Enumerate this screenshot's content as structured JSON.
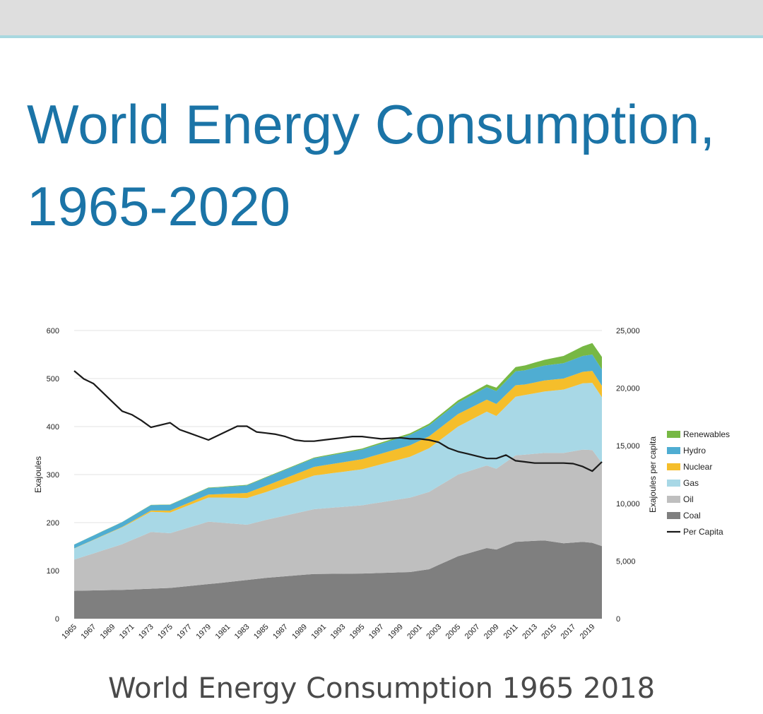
{
  "page": {
    "title": "World Energy Consumption, 1965-2020",
    "caption": "World Energy Consumption 1965 2018"
  },
  "chart_data": {
    "type": "area",
    "title": "",
    "ylabel": "Exajoules",
    "y2label": "Exajoules per capita",
    "ylim": [
      0,
      600
    ],
    "y2lim": [
      0,
      25000
    ],
    "yticks": [
      0,
      100,
      200,
      300,
      400,
      500,
      600
    ],
    "y2ticks": [
      "0",
      "5,000",
      "10,000",
      "15,000",
      "20,000",
      "25,000"
    ],
    "y2tickvalues": [
      0,
      5000,
      10000,
      15000,
      20000,
      25000
    ],
    "xlim": [
      1965,
      2020
    ],
    "xticks": [
      "1965",
      "1967",
      "1969",
      "1971",
      "1973",
      "1975",
      "1977",
      "1979",
      "1981",
      "1983",
      "1985",
      "1987",
      "1989",
      "1991",
      "1993",
      "1995",
      "1997",
      "1999",
      "2001",
      "2003",
      "2005",
      "2007",
      "2009",
      "2011",
      "2013",
      "2015",
      "2017",
      "2019"
    ],
    "legend_position": "right",
    "series": [
      {
        "name": "Coal",
        "color": "#7f7f7f",
        "x": [
          1965,
          1970,
          1975,
          1980,
          1985,
          1990,
          1995,
          2000,
          2002,
          2005,
          2008,
          2009,
          2011,
          2014,
          2016,
          2018,
          2019,
          2020
        ],
        "values": [
          58,
          60,
          64,
          74,
          85,
          93,
          94,
          97,
          103,
          130,
          147,
          144,
          160,
          163,
          157,
          160,
          158,
          151
        ]
      },
      {
        "name": "Oil",
        "color": "#bfbfbf",
        "x": [
          1965,
          1970,
          1973,
          1975,
          1979,
          1983,
          1990,
          1995,
          2000,
          2005,
          2008,
          2009,
          2011,
          2014,
          2016,
          2018,
          2019,
          2020
        ],
        "values": [
          65,
          95,
          118,
          114,
          130,
          115,
          135,
          142,
          155,
          170,
          172,
          168,
          180,
          182,
          188,
          192,
          193,
          173
        ]
      },
      {
        "name": "Gas",
        "color": "#a8d8e6",
        "x": [
          1965,
          1970,
          1973,
          1975,
          1980,
          1985,
          1990,
          1995,
          2000,
          2005,
          2008,
          2009,
          2011,
          2014,
          2016,
          2018,
          2019,
          2020
        ],
        "values": [
          23,
          35,
          42,
          43,
          52,
          58,
          70,
          75,
          85,
          100,
          112,
          110,
          122,
          128,
          132,
          138,
          140,
          137
        ]
      },
      {
        "name": "Nuclear",
        "color": "#f5be2b",
        "x": [
          1965,
          1970,
          1975,
          1980,
          1985,
          1990,
          1995,
          2000,
          2005,
          2008,
          2009,
          2011,
          2012,
          2014,
          2016,
          2018,
          2019,
          2020
        ],
        "values": [
          0.3,
          1,
          4,
          7,
          13,
          18,
          21,
          24,
          26,
          25,
          25,
          24,
          22,
          23,
          23,
          24,
          25,
          24
        ]
      },
      {
        "name": "Hydro",
        "color": "#4fadd2",
        "x": [
          1965,
          1970,
          1975,
          1980,
          1985,
          1990,
          1995,
          2000,
          2005,
          2008,
          2011,
          2014,
          2016,
          2018,
          2019,
          2020
        ],
        "values": [
          8,
          10,
          12,
          14,
          17,
          18,
          20,
          22,
          24,
          26,
          29,
          31,
          32,
          33,
          34,
          34
        ]
      },
      {
        "name": "Renewables",
        "color": "#77b844",
        "x": [
          1965,
          1990,
          2000,
          2005,
          2008,
          2009,
          2011,
          2014,
          2016,
          2018,
          2019,
          2020
        ],
        "values": [
          0.1,
          1.5,
          3,
          4.5,
          6,
          7,
          9,
          12,
          15,
          20,
          24,
          26
        ]
      },
      {
        "name": "Per Capita",
        "color": "#1a1a1a",
        "axis": "secondary",
        "x": [
          1965,
          1966,
          1967,
          1968,
          1969,
          1970,
          1971,
          1972,
          1973,
          1974,
          1975,
          1976,
          1977,
          1978,
          1979,
          1980,
          1981,
          1982,
          1983,
          1984,
          1985,
          1986,
          1987,
          1988,
          1989,
          1990,
          1991,
          1992,
          1993,
          1994,
          1995,
          1996,
          1997,
          1998,
          1999,
          2000,
          2001,
          2002,
          2003,
          2004,
          2005,
          2006,
          2007,
          2008,
          2009,
          2010,
          2011,
          2012,
          2013,
          2014,
          2015,
          2016,
          2017,
          2018,
          2019,
          2020
        ],
        "values": [
          21500,
          20800,
          20400,
          19600,
          18800,
          18000,
          17700,
          17200,
          16600,
          16800,
          17000,
          16400,
          16100,
          15800,
          15500,
          15900,
          16300,
          16700,
          16700,
          16200,
          16100,
          16000,
          15800,
          15500,
          15400,
          15400,
          15500,
          15600,
          15700,
          15800,
          15800,
          15700,
          15600,
          15650,
          15700,
          15600,
          15600,
          15500,
          15300,
          14800,
          14500,
          14300,
          14100,
          13900,
          13900,
          14200,
          13700,
          13600,
          13500,
          13500,
          13500,
          13500,
          13450,
          13200,
          12800,
          13600
        ]
      }
    ]
  }
}
